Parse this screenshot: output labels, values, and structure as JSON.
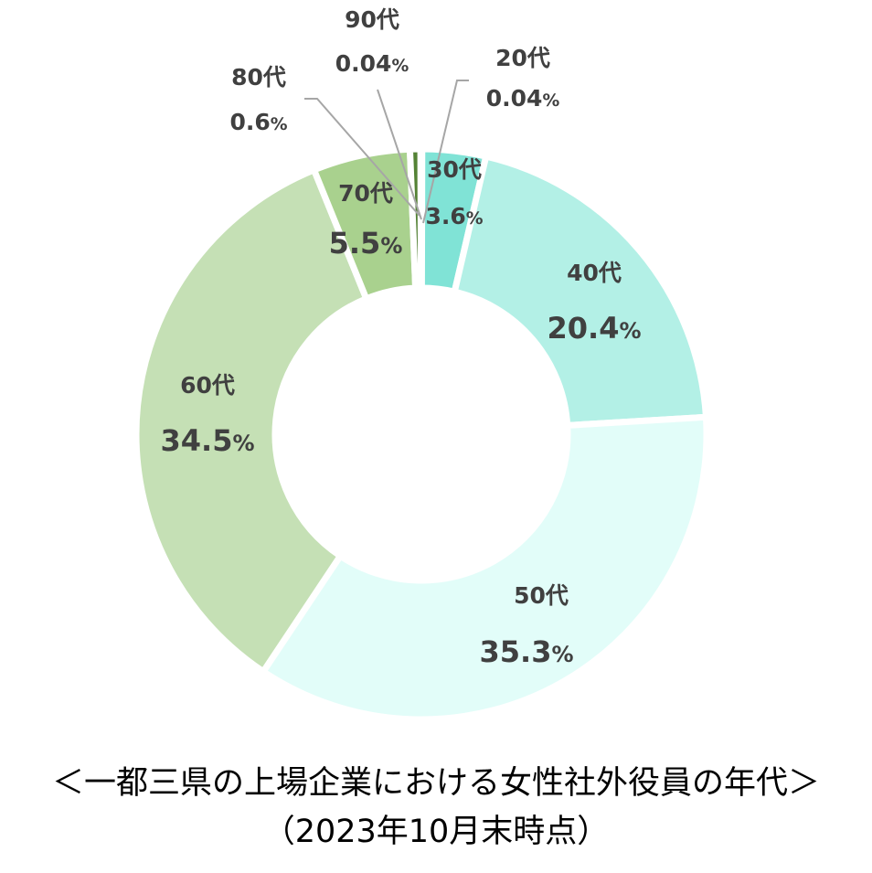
{
  "chart_data": {
    "type": "pie",
    "variant": "donut",
    "title": "＜一都三県の上場企業における女性社外役員の年代＞",
    "subtitle": "（2023年10月末時点）",
    "categories": [
      "20代",
      "30代",
      "40代",
      "50代",
      "60代",
      "70代",
      "80代",
      "90代"
    ],
    "values": [
      0.04,
      3.6,
      20.4,
      35.3,
      34.5,
      5.5,
      0.6,
      0.04
    ],
    "value_labels": [
      "0.04%",
      "3.6%",
      "20.4%",
      "35.3%",
      "34.5%",
      "5.5%",
      "0.6%",
      "0.04%"
    ],
    "colors": [
      "#56a8a0",
      "#80e3d6",
      "#b3f0e6",
      "#e2fdf9",
      "#c5e0b5",
      "#a9d18e",
      "#548235",
      "#375623"
    ],
    "start": "top, clockwise",
    "legend": "none (category labels on slices)"
  }
}
